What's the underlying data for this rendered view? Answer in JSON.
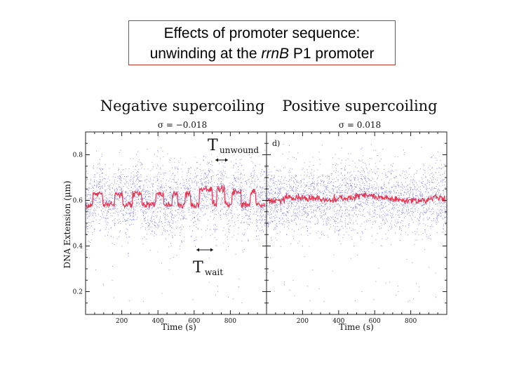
{
  "slide": {
    "title_line1": "Effects of promoter sequence:",
    "title_line2_pre": "unwinding at the ",
    "title_line2_italic": "rrnB",
    "title_line2_post": " P1 promoter"
  },
  "chart_data": [
    {
      "type": "scatter",
      "title": "Negative supercoiling",
      "subtitle": "σ = −0.018",
      "xlabel": "Time (s)",
      "ylabel": "DNA Extension (μm)",
      "xlim": [
        0,
        1000
      ],
      "ylim": [
        0.1,
        0.9
      ],
      "x_ticks": [
        200,
        400,
        600,
        800
      ],
      "y_ticks": [
        0.2,
        0.4,
        0.6,
        0.8
      ],
      "grid": false,
      "annotations": [
        {
          "text": "T",
          "subscript": "unwound",
          "x_range": [
            665,
            705
          ],
          "y": 0.8
        },
        {
          "text": "T",
          "subscript": "wait",
          "x_range": [
            600,
            650
          ],
          "y": 0.45
        }
      ],
      "series": [
        {
          "role": "raw",
          "color": "#6a6ae8"
        },
        {
          "role": "filtered",
          "color": "#e8364e",
          "x": [
            0,
            30,
            40,
            80,
            95,
            150,
            160,
            200,
            205,
            250,
            260,
            300,
            310,
            380,
            390,
            420,
            430,
            470,
            480,
            500,
            510,
            540,
            550,
            570,
            580,
            620,
            630,
            690,
            700,
            720,
            725,
            760,
            770,
            800,
            810,
            850,
            860,
            900,
            910,
            930,
            940,
            990
          ],
          "values": [
            0.58,
            0.58,
            0.63,
            0.63,
            0.58,
            0.58,
            0.63,
            0.63,
            0.58,
            0.58,
            0.63,
            0.63,
            0.58,
            0.58,
            0.63,
            0.63,
            0.58,
            0.58,
            0.63,
            0.63,
            0.58,
            0.58,
            0.63,
            0.63,
            0.58,
            0.58,
            0.65,
            0.65,
            0.58,
            0.58,
            0.65,
            0.65,
            0.58,
            0.58,
            0.64,
            0.64,
            0.58,
            0.58,
            0.64,
            0.64,
            0.58,
            0.58
          ]
        }
      ]
    },
    {
      "type": "scatter",
      "title": "Positive supercoiling",
      "subtitle": "σ = 0.018",
      "panel_label": "d)",
      "xlabel": "Time (s)",
      "xlim": [
        0,
        1000
      ],
      "ylim": [
        0.1,
        0.9
      ],
      "x_ticks": [
        200,
        400,
        600,
        800
      ],
      "grid": false,
      "series": [
        {
          "role": "raw",
          "color": "#6a6ae8"
        },
        {
          "role": "filtered",
          "color": "#e8364e",
          "x": [
            0,
            100,
            200,
            300,
            400,
            500,
            600,
            700,
            800,
            900,
            990
          ],
          "values": [
            0.6,
            0.61,
            0.61,
            0.6,
            0.61,
            0.62,
            0.61,
            0.6,
            0.6,
            0.61,
            0.6
          ]
        }
      ]
    }
  ]
}
